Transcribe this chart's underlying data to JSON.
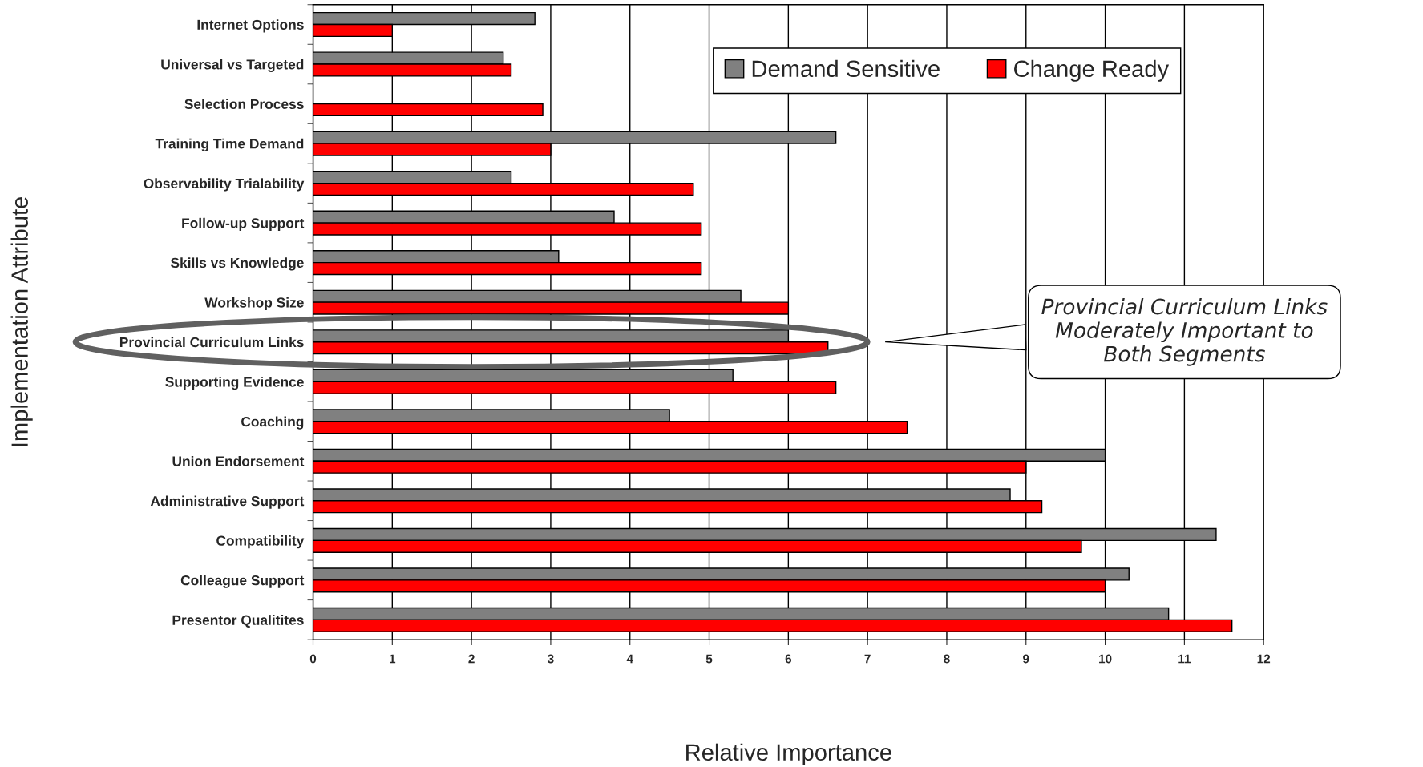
{
  "chart_data": {
    "type": "bar",
    "orientation": "horizontal",
    "categories": [
      "Internet Options",
      "Universal vs Targeted",
      "Selection Process",
      "Training Time Demand",
      "Observability Trialability",
      "Follow-up Support",
      "Skills vs Knowledge",
      "Workshop Size",
      "Provincial Curriculum Links",
      "Supporting Evidence",
      "Coaching",
      "Union Endorsement",
      "Administrative Support",
      "Compatibility",
      "Colleague Support",
      "Presentor Qualitites"
    ],
    "series": [
      {
        "name": "Demand Sensitive",
        "color": "#808080",
        "values": [
          2.8,
          2.4,
          null,
          6.6,
          2.5,
          3.8,
          3.1,
          5.4,
          6.0,
          5.3,
          4.5,
          10.0,
          8.8,
          11.4,
          10.3,
          10.8
        ]
      },
      {
        "name": "Change Ready",
        "color": "#ff0000",
        "values": [
          1.0,
          2.5,
          2.9,
          3.0,
          4.8,
          4.9,
          4.9,
          6.0,
          6.5,
          6.6,
          7.5,
          9.0,
          9.2,
          9.7,
          10.0,
          11.6
        ]
      }
    ],
    "xlabel": "Relative Importance",
    "ylabel": "Implementation Attribute",
    "xlim": [
      0,
      12
    ],
    "xticks": [
      0,
      1,
      2,
      3,
      4,
      5,
      6,
      7,
      8,
      9,
      10,
      11,
      12
    ],
    "grid": "x",
    "legend": "top right",
    "annotations": [
      "Provincial Curriculum Links\nModerately Important to\nBoth Segments"
    ]
  }
}
